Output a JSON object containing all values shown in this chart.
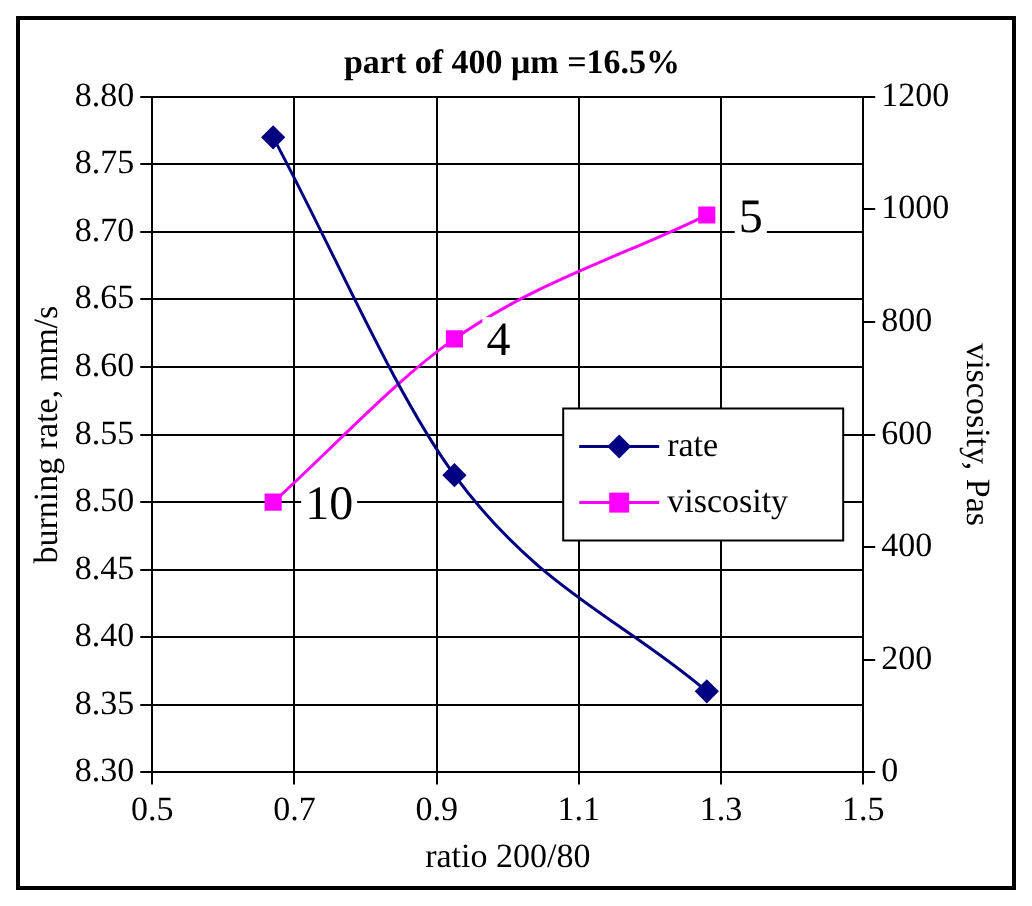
{
  "chart_data": {
    "type": "line",
    "title": "part of 400 μm =16.5%",
    "xlabel": "ratio 200/80",
    "ylabel": "burning rate, mm/s",
    "y2label": "viscosity, Pas",
    "series": [
      {
        "name": "rate",
        "color": "#000080",
        "x": [
          0.67,
          0.925,
          1.28
        ],
        "values": [
          8.77,
          8.52,
          8.36
        ],
        "marker": "diamond"
      },
      {
        "name": "viscosity",
        "color": "#ff00ff",
        "x": [
          0.67,
          0.925,
          1.28
        ],
        "values": [
          480,
          770,
          990
        ],
        "axis": "y2",
        "marker": "square"
      }
    ],
    "xlim": [
      0.5,
      1.5
    ],
    "xticks": [
      0.5,
      0.7,
      0.9,
      1.1,
      1.3,
      1.5
    ],
    "ylim": [
      8.3,
      8.8
    ],
    "yticks": [
      {
        "value": 8.3,
        "label": "8.30"
      },
      {
        "value": 8.35,
        "label": "8.35"
      },
      {
        "value": 8.4,
        "label": "8.40"
      },
      {
        "value": 8.45,
        "label": "8.45"
      },
      {
        "value": 8.5,
        "label": "8.50"
      },
      {
        "value": 8.55,
        "label": "8.55"
      },
      {
        "value": 8.6,
        "label": "8.60"
      },
      {
        "value": 8.65,
        "label": "8.65"
      },
      {
        "value": 8.7,
        "label": "8.70"
      },
      {
        "value": 8.75,
        "label": "8.75"
      },
      {
        "value": 8.8,
        "label": "8.80"
      }
    ],
    "y2lim": [
      0,
      1200
    ],
    "y2ticks": [
      0,
      200,
      400,
      600,
      800,
      1000,
      1200
    ],
    "annotations": [
      "10",
      "4",
      "5"
    ],
    "grid": true,
    "legend": "right",
    "line_style": "solid"
  }
}
